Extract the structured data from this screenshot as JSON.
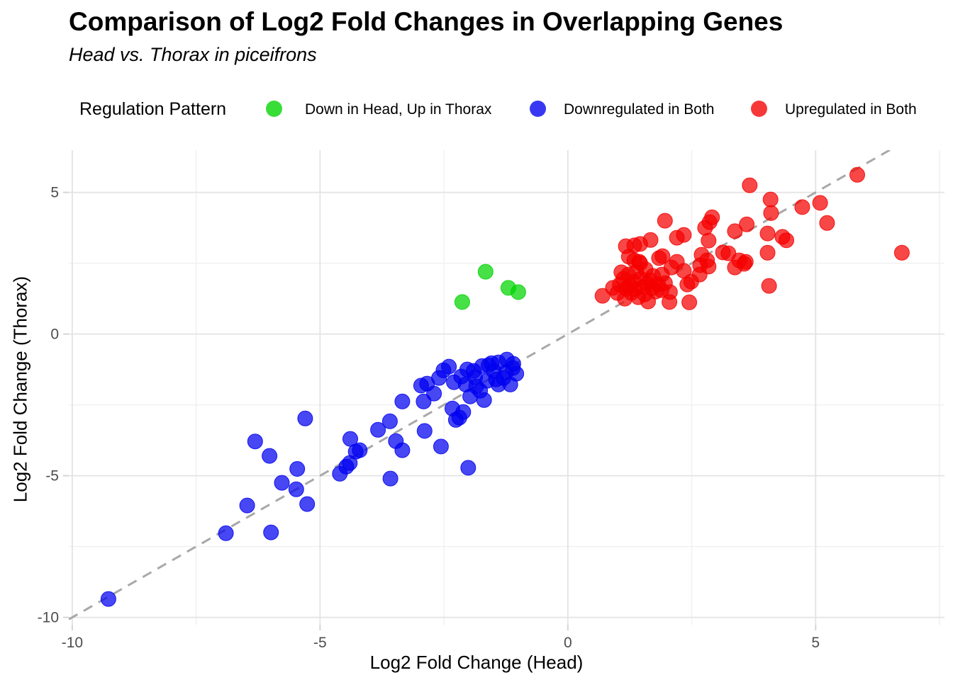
{
  "title": "Comparison of Log2 Fold Changes in Overlapping Genes",
  "subtitle": "Head vs. Thorax in piceifrons",
  "legend": {
    "title": "Regulation Pattern",
    "items": [
      {
        "label": "Down in Head, Up in Thorax",
        "color": "#00D400"
      },
      {
        "label": "Downregulated in Both",
        "color": "#0000F0"
      },
      {
        "label": "Upregulated in Both",
        "color": "#F50000"
      }
    ]
  },
  "chart_data": {
    "type": "scatter",
    "title": "Comparison of Log2 Fold Changes in Overlapping Genes",
    "subtitle": "Head vs. Thorax in piceifrons",
    "xlabel": "Log2 Fold Change (Head)",
    "ylabel": "Log2 Fold Change (Thorax)",
    "xlim": [
      -10.07,
      7.6
    ],
    "ylim": [
      -10.26,
      6.49
    ],
    "x_major_ticks": [
      -10,
      -5,
      0,
      5
    ],
    "y_major_ticks": [
      -10,
      -5,
      0,
      5
    ],
    "x_minor_ticks": [
      -7.5,
      -2.5,
      2.5,
      7.5
    ],
    "y_minor_ticks": [
      -7.5,
      -2.5,
      2.5
    ],
    "grid": true,
    "legend_position": "top",
    "identity_line": {
      "style": "dashed",
      "color": "#A8A8A8",
      "equation": "y = x"
    },
    "point_style": {
      "radius_px": 10.5,
      "opacity": 0.72
    },
    "series": [
      {
        "name": "Down in Head, Up in Thorax",
        "color": "#00D400",
        "points": [
          [
            -1.66,
            2.2
          ],
          [
            -2.13,
            1.13
          ],
          [
            -1.2,
            1.63
          ],
          [
            -1.0,
            1.48
          ]
        ]
      },
      {
        "name": "Downregulated in Both",
        "color": "#0000F0",
        "points": [
          [
            -9.27,
            -9.35
          ],
          [
            -6.9,
            -7.03
          ],
          [
            -6.47,
            -6.05
          ],
          [
            -5.99,
            -7.0
          ],
          [
            -5.77,
            -5.25
          ],
          [
            -5.48,
            -5.48
          ],
          [
            -5.26,
            -6.0
          ],
          [
            -6.31,
            -3.79
          ],
          [
            -6.02,
            -4.3
          ],
          [
            -5.46,
            -4.76
          ],
          [
            -5.3,
            -2.98
          ],
          [
            -4.6,
            -4.93
          ],
          [
            -4.47,
            -4.68
          ],
          [
            -4.4,
            -4.55
          ],
          [
            -4.39,
            -3.7
          ],
          [
            -4.28,
            -4.15
          ],
          [
            -4.2,
            -4.1
          ],
          [
            -3.83,
            -3.38
          ],
          [
            -3.59,
            -3.08
          ],
          [
            -3.47,
            -3.78
          ],
          [
            -3.34,
            -4.1
          ],
          [
            -3.58,
            -5.1
          ],
          [
            -2.89,
            -3.42
          ],
          [
            -2.56,
            -3.97
          ],
          [
            -2.01,
            -4.72
          ],
          [
            -3.34,
            -2.38
          ],
          [
            -2.91,
            -2.38
          ],
          [
            -2.84,
            -1.75
          ],
          [
            -2.96,
            -1.82
          ],
          [
            -2.4,
            -1.15
          ],
          [
            -2.51,
            -1.28
          ],
          [
            -2.03,
            -1.25
          ],
          [
            -2.3,
            -1.7
          ],
          [
            -2.06,
            -1.78
          ],
          [
            -1.87,
            -1.53
          ],
          [
            -1.73,
            -1.13
          ],
          [
            -1.54,
            -1.03
          ],
          [
            -1.4,
            -1.0
          ],
          [
            -1.23,
            -0.9
          ],
          [
            -1.11,
            -1.2
          ],
          [
            -1.04,
            -1.4
          ],
          [
            -1.16,
            -1.78
          ],
          [
            -1.4,
            -1.78
          ],
          [
            -1.63,
            -1.65
          ],
          [
            -1.77,
            -2.0
          ],
          [
            -1.97,
            -2.2
          ],
          [
            -1.69,
            -2.33
          ],
          [
            -2.33,
            -2.63
          ],
          [
            -2.11,
            -2.75
          ],
          [
            -2.19,
            -2.95
          ],
          [
            -2.26,
            -3.03
          ],
          [
            -1.5,
            -1.3
          ],
          [
            -1.6,
            -1.1
          ],
          [
            -1.3,
            -1.55
          ],
          [
            -1.9,
            -1.3
          ],
          [
            -2.15,
            -1.5
          ],
          [
            -1.45,
            -1.6
          ],
          [
            -1.25,
            -1.35
          ],
          [
            -1.1,
            -1.05
          ],
          [
            -1.85,
            -1.85
          ],
          [
            -2.6,
            -1.55
          ],
          [
            -2.7,
            -2.1
          ]
        ]
      },
      {
        "name": "Upregulated in Both",
        "color": "#F50000",
        "points": [
          [
            0.91,
            1.63
          ],
          [
            1.17,
            3.1
          ],
          [
            1.34,
            3.13
          ],
          [
            1.46,
            3.18
          ],
          [
            1.67,
            3.32
          ],
          [
            1.23,
            2.73
          ],
          [
            1.44,
            2.55
          ],
          [
            1.34,
            2.6
          ],
          [
            1.46,
            2.5
          ],
          [
            1.84,
            2.68
          ],
          [
            1.91,
            2.75
          ],
          [
            2.2,
            2.55
          ],
          [
            2.34,
            2.23
          ],
          [
            2.49,
            1.85
          ],
          [
            2.67,
            2.43
          ],
          [
            2.81,
            2.6
          ],
          [
            2.09,
            2.35
          ],
          [
            1.96,
            1.8
          ],
          [
            2.06,
            1.48
          ],
          [
            2.05,
            1.13
          ],
          [
            2.45,
            1.12
          ],
          [
            1.89,
            1.55
          ],
          [
            2.41,
            1.75
          ],
          [
            2.77,
            3.75
          ],
          [
            2.91,
            4.12
          ],
          [
            2.86,
            3.95
          ],
          [
            2.84,
            3.3
          ],
          [
            2.84,
            2.38
          ],
          [
            2.7,
            2.8
          ],
          [
            3.13,
            2.88
          ],
          [
            3.24,
            2.85
          ],
          [
            3.46,
            2.6
          ],
          [
            3.59,
            2.55
          ],
          [
            3.37,
            3.63
          ],
          [
            3.61,
            3.87
          ],
          [
            3.67,
            5.25
          ],
          [
            4.09,
            4.75
          ],
          [
            4.1,
            4.27
          ],
          [
            4.03,
            3.55
          ],
          [
            4.33,
            3.43
          ],
          [
            4.41,
            3.31
          ],
          [
            4.03,
            2.87
          ],
          [
            4.06,
            1.7
          ],
          [
            4.73,
            4.48
          ],
          [
            5.09,
            4.63
          ],
          [
            5.23,
            3.92
          ],
          [
            5.84,
            5.62
          ],
          [
            6.74,
            2.87
          ],
          [
            3.37,
            2.35
          ],
          [
            3.56,
            2.48
          ],
          [
            1.96,
            4.0
          ],
          [
            2.2,
            3.4
          ],
          [
            2.34,
            3.5
          ],
          [
            2.66,
            2.1
          ],
          [
            0.7,
            1.35
          ],
          [
            1.05,
            1.75
          ],
          [
            1.12,
            1.95
          ],
          [
            1.18,
            1.6
          ],
          [
            1.22,
            2.1
          ],
          [
            1.28,
            1.45
          ],
          [
            1.33,
            1.85
          ],
          [
            1.38,
            2.2
          ],
          [
            1.42,
            1.3
          ],
          [
            1.47,
            1.95
          ],
          [
            1.52,
            1.65
          ],
          [
            1.57,
            2.28
          ],
          [
            1.62,
            1.15
          ],
          [
            1.66,
            1.9
          ],
          [
            1.72,
            2.05
          ],
          [
            1.77,
            1.5
          ],
          [
            1.82,
            1.75
          ],
          [
            1.15,
            1.25
          ],
          [
            1.25,
            1.7
          ],
          [
            1.55,
            1.4
          ],
          [
            1.7,
            1.62
          ],
          [
            1.0,
            1.45
          ],
          [
            1.08,
            2.18
          ],
          [
            1.35,
            1.58
          ],
          [
            1.6,
            1.78
          ],
          [
            1.9,
            2.1
          ]
        ]
      }
    ]
  },
  "axis_tick_labels": {
    "x": [
      "-10",
      "-5",
      "0",
      "5"
    ],
    "y": [
      "-10",
      "-5",
      "0",
      "5"
    ]
  }
}
